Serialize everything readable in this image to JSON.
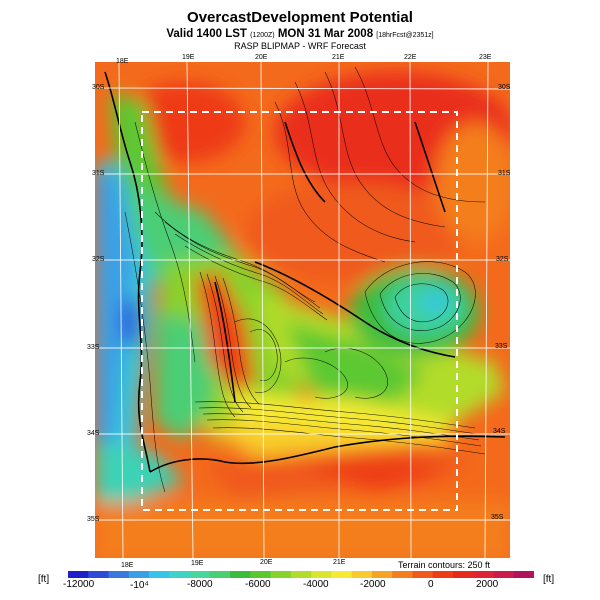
{
  "title": {
    "line1": "OvercastDevelopment Potential",
    "line2_main": "Valid 1400 LST",
    "line2_small1": "(1200Z)",
    "line2_mid": "MON 31 Mar 2008",
    "line2_small2": "[18hrFcst@2351z]",
    "line3": "RASP BLIPMAP - WRF Forecast"
  },
  "map": {
    "top_lon_labels": [
      "18E",
      "19E",
      "20E",
      "21E",
      "22E",
      "23E"
    ],
    "bottom_lon_labels": [
      "18E",
      "19E",
      "20E",
      "21E"
    ],
    "left_lat_labels": [
      "30S",
      "31S",
      "32S",
      "33S",
      "34S",
      "35S"
    ],
    "right_lat_labels": [
      "30S",
      "31S",
      "32S",
      "33S",
      "34S",
      "35S"
    ],
    "terrain_note": "Terrain contours: 250 ft"
  },
  "colorbar": {
    "unit_left": "[ft]",
    "unit_right": "[ft]",
    "labels": [
      "-12000",
      "-10⁴",
      "-8000",
      "-6000",
      "-4000",
      "-2000",
      "0",
      "2000"
    ],
    "colors": [
      "#2020c8",
      "#2e4ad8",
      "#3a78e0",
      "#3aa0e6",
      "#36c4e8",
      "#3ed2c8",
      "#46d69e",
      "#4cce74",
      "#3cbc3c",
      "#5cc830",
      "#88d22c",
      "#b2dc2c",
      "#dce42e",
      "#f6ea32",
      "#f8cc2c",
      "#f6a424",
      "#f47e1e",
      "#f05a1a",
      "#ee3c18",
      "#e82a1e",
      "#e02438",
      "#cc1c4c",
      "#b0145c"
    ]
  }
}
